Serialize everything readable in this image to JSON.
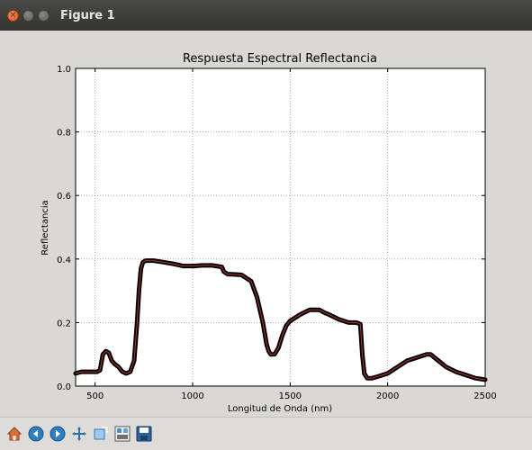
{
  "window": {
    "title": "Figure 1",
    "close_glyph": "×",
    "min_glyph": "",
    "max_glyph": ""
  },
  "toolbar": {
    "buttons": [
      {
        "icon": "home-icon"
      },
      {
        "icon": "back-arrow-icon"
      },
      {
        "icon": "forward-arrow-icon"
      },
      {
        "icon": "pan-move-icon"
      },
      {
        "icon": "zoom-rect-icon"
      },
      {
        "icon": "subplots-config-icon"
      },
      {
        "icon": "save-floppy-icon"
      }
    ]
  },
  "chart_data": {
    "type": "line",
    "title": "Respuesta Espectral Reflectancia",
    "xlabel": "Longitud de Onda (nm)",
    "ylabel": "Reflectancia",
    "xlim": [
      400,
      2500
    ],
    "ylim": [
      0.0,
      1.0
    ],
    "xticks": [
      500,
      1000,
      1500,
      2000,
      2500
    ],
    "xtick_labels": [
      "500",
      "1000",
      "1500",
      "2000",
      "2500"
    ],
    "yticks": [
      0.0,
      0.2,
      0.4,
      0.6,
      0.8,
      1.0
    ],
    "ytick_labels": [
      "0.0",
      "0.2",
      "0.4",
      "0.6",
      "0.8",
      "1.0"
    ],
    "grid": true,
    "line_color": "#000000",
    "inner_color": "#b03a2e",
    "series": [
      {
        "x": [
          400,
          430,
          460,
          490,
          510,
          525,
          540,
          555,
          570,
          585,
          600,
          620,
          640,
          660,
          680,
          700,
          715,
          725,
          735,
          745,
          760,
          780,
          800,
          850,
          900,
          950,
          1000,
          1050,
          1100,
          1150,
          1160,
          1180,
          1200,
          1250,
          1300,
          1330,
          1360,
          1380,
          1390,
          1400,
          1420,
          1440,
          1460,
          1480,
          1500,
          1550,
          1600,
          1650,
          1680,
          1700,
          1750,
          1800,
          1840,
          1860,
          1870,
          1880,
          1895,
          1920,
          1950,
          2000,
          2050,
          2100,
          2150,
          2200,
          2220,
          2250,
          2300,
          2350,
          2400,
          2450,
          2500
        ],
        "y": [
          0.04,
          0.045,
          0.045,
          0.045,
          0.045,
          0.05,
          0.1,
          0.11,
          0.105,
          0.08,
          0.07,
          0.06,
          0.045,
          0.04,
          0.045,
          0.08,
          0.2,
          0.3,
          0.37,
          0.39,
          0.395,
          0.395,
          0.395,
          0.39,
          0.385,
          0.378,
          0.378,
          0.38,
          0.38,
          0.375,
          0.36,
          0.352,
          0.352,
          0.35,
          0.33,
          0.28,
          0.2,
          0.13,
          0.11,
          0.1,
          0.1,
          0.12,
          0.16,
          0.19,
          0.205,
          0.225,
          0.24,
          0.24,
          0.23,
          0.225,
          0.21,
          0.2,
          0.2,
          0.195,
          0.1,
          0.04,
          0.025,
          0.025,
          0.03,
          0.04,
          0.06,
          0.08,
          0.09,
          0.1,
          0.1,
          0.085,
          0.06,
          0.045,
          0.035,
          0.025,
          0.02
        ]
      }
    ]
  }
}
